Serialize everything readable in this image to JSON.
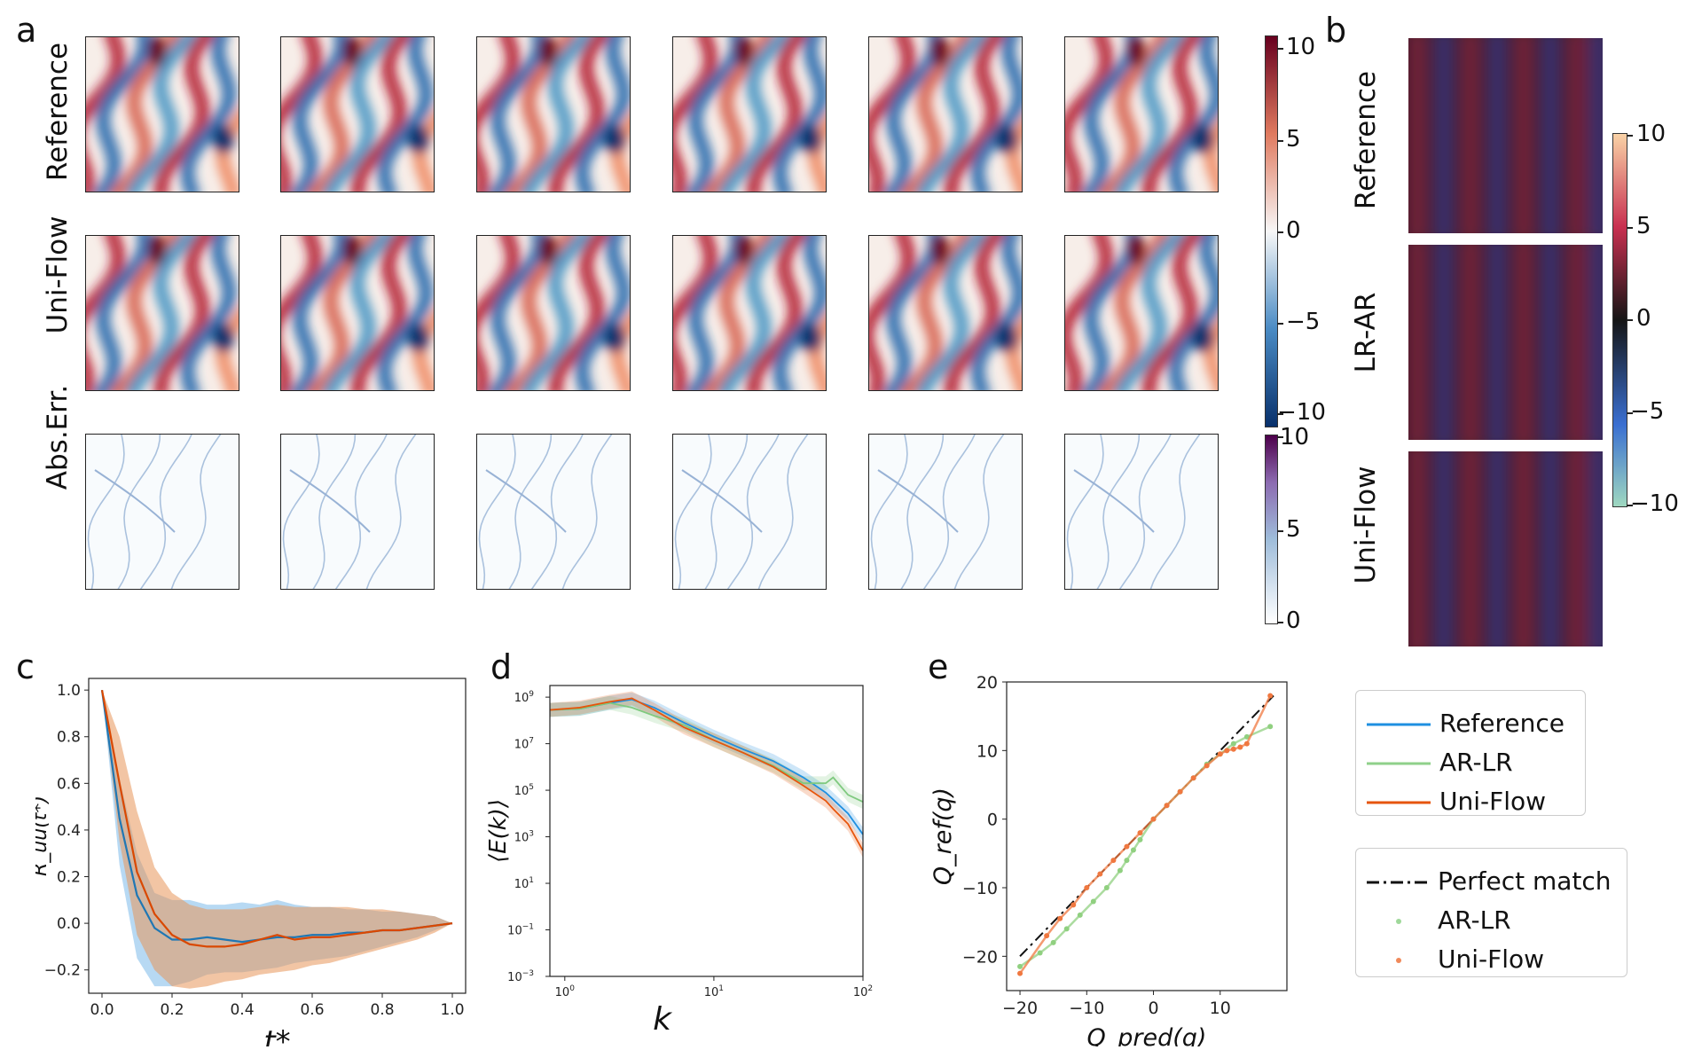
{
  "panel_a": {
    "letter": "a",
    "rows": [
      "Reference",
      "Uni-Flow",
      "Abs.Err."
    ],
    "colorbar_vorticity": {
      "ticks": [
        "10",
        "5",
        "0",
        "−10",
        "−5"
      ],
      "min": -10,
      "max": 10,
      "colors": [
        "#08306b",
        "#2166ac",
        "#f7f7f7",
        "#b2182b",
        "#67001f"
      ]
    },
    "colorbar_error": {
      "ticks": [
        "10",
        "5",
        "0"
      ],
      "min": 0,
      "max": 10,
      "colors": [
        "#ffffff",
        "#9ebcda",
        "#8c6bb1",
        "#4d004b"
      ]
    }
  },
  "panel_b": {
    "letter": "b",
    "rows": [
      "Reference",
      "LR-AR",
      "Uni-Flow"
    ],
    "colorbar": {
      "ticks": [
        "10",
        "5",
        "0",
        "−5",
        "−10"
      ],
      "min": -10,
      "max": 10,
      "colors": [
        "#6ec1a9",
        "#3f6fd0",
        "#1a1a1a",
        "#c0304a",
        "#f6c89a"
      ]
    }
  },
  "panel_c": {
    "letter": "c",
    "chart_data": {
      "type": "line",
      "xlabel": "t*",
      "ylabel": "R_uu(t*)",
      "xlim": [
        0,
        1
      ],
      "ylim": [
        -0.3,
        1.05
      ],
      "xticks": [
        "0.0",
        "0.2",
        "0.4",
        "0.6",
        "0.8",
        "1.0"
      ],
      "yticks": [
        "1.0",
        "0.8",
        "0.6",
        "0.4",
        "0.2",
        "0.0",
        "−0.2"
      ],
      "x": [
        0.0,
        0.05,
        0.1,
        0.15,
        0.2,
        0.25,
        0.3,
        0.35,
        0.4,
        0.45,
        0.5,
        0.55,
        0.6,
        0.65,
        0.7,
        0.75,
        0.8,
        0.85,
        0.9,
        0.95,
        1.0
      ],
      "series": [
        {
          "name": "Reference",
          "color": "#1f77b4",
          "band": "#6fb3e8",
          "values": [
            1.0,
            0.45,
            0.12,
            -0.02,
            -0.07,
            -0.07,
            -0.06,
            -0.07,
            -0.08,
            -0.07,
            -0.06,
            -0.06,
            -0.05,
            -0.05,
            -0.04,
            -0.04,
            -0.03,
            -0.03,
            -0.02,
            -0.01,
            0.0
          ],
          "upper": [
            1.0,
            0.62,
            0.3,
            0.13,
            0.1,
            0.1,
            0.08,
            0.08,
            0.09,
            0.08,
            0.1,
            0.08,
            0.07,
            0.07,
            0.06,
            0.06,
            0.05,
            0.05,
            0.04,
            0.03,
            0.0
          ],
          "lower": [
            1.0,
            0.25,
            -0.15,
            -0.27,
            -0.27,
            -0.25,
            -0.22,
            -0.21,
            -0.21,
            -0.2,
            -0.19,
            -0.17,
            -0.16,
            -0.15,
            -0.14,
            -0.12,
            -0.1,
            -0.08,
            -0.06,
            -0.03,
            0.0
          ]
        },
        {
          "name": "Uni-Flow",
          "color": "#d94801",
          "band": "#e8955a",
          "values": [
            1.0,
            0.6,
            0.22,
            0.04,
            -0.05,
            -0.09,
            -0.1,
            -0.1,
            -0.09,
            -0.07,
            -0.05,
            -0.07,
            -0.06,
            -0.06,
            -0.05,
            -0.04,
            -0.03,
            -0.03,
            -0.02,
            -0.01,
            0.0
          ],
          "upper": [
            1.0,
            0.8,
            0.48,
            0.24,
            0.13,
            0.08,
            0.06,
            0.06,
            0.06,
            0.07,
            0.08,
            0.07,
            0.07,
            0.07,
            0.07,
            0.06,
            0.06,
            0.05,
            0.04,
            0.03,
            0.0
          ],
          "lower": [
            1.0,
            0.35,
            -0.05,
            -0.2,
            -0.27,
            -0.28,
            -0.27,
            -0.25,
            -0.24,
            -0.22,
            -0.21,
            -0.2,
            -0.18,
            -0.17,
            -0.15,
            -0.13,
            -0.11,
            -0.09,
            -0.07,
            -0.04,
            0.0
          ]
        }
      ]
    }
  },
  "panel_d": {
    "letter": "d",
    "chart_data": {
      "type": "line",
      "xlabel": "k",
      "ylabel": "⟨E(k)⟩",
      "xscale": "log",
      "yscale": "log",
      "xlim_log10": [
        -0.1,
        2.0
      ],
      "ylim_log10": [
        -3,
        9.5
      ],
      "xticks": [
        {
          "base": "10",
          "exp": "0",
          "log": 0
        },
        {
          "base": "10",
          "exp": "1",
          "log": 1
        },
        {
          "base": "10",
          "exp": "2",
          "log": 2
        }
      ],
      "yticks": [
        {
          "base": "10",
          "exp": "9",
          "log": 9
        },
        {
          "base": "10",
          "exp": "7",
          "log": 7
        },
        {
          "base": "10",
          "exp": "5",
          "log": 5
        },
        {
          "base": "10",
          "exp": "3",
          "log": 3
        },
        {
          "base": "10",
          "exp": "1",
          "log": 1
        },
        {
          "base": "10",
          "exp": "−1",
          "log": -1
        },
        {
          "base": "10",
          "exp": "−3",
          "log": -3
        }
      ],
      "log_k": [
        -0.1,
        0.1,
        0.3,
        0.45,
        0.6,
        0.8,
        1.0,
        1.2,
        1.4,
        1.6,
        1.75,
        1.8,
        1.9,
        2.0
      ],
      "series": [
        {
          "name": "Reference",
          "color": "#1f8fe0",
          "values_log10": [
            8.45,
            8.5,
            8.75,
            8.9,
            8.55,
            7.9,
            7.3,
            6.75,
            6.25,
            5.55,
            4.9,
            4.6,
            4.0,
            3.1
          ]
        },
        {
          "name": "AR-LR",
          "color": "#7fc97f",
          "values_log10": [
            8.45,
            8.5,
            8.75,
            8.55,
            8.2,
            7.8,
            7.15,
            6.6,
            6.05,
            5.3,
            5.3,
            5.55,
            4.8,
            4.5
          ]
        },
        {
          "name": "Uni-Flow",
          "color": "#e6550d",
          "values_log10": [
            8.45,
            8.55,
            8.8,
            8.95,
            8.45,
            7.7,
            7.15,
            6.6,
            6.0,
            5.2,
            4.55,
            4.2,
            3.55,
            2.4
          ]
        }
      ]
    }
  },
  "panel_e": {
    "letter": "e",
    "chart_data": {
      "type": "scatter",
      "xlabel": "Q_pred(q)",
      "ylabel": "Q_ref(q)",
      "xlim": [
        -22,
        20
      ],
      "ylim": [
        -25,
        20
      ],
      "xticks": [
        "−20",
        "−10",
        "0",
        "10"
      ],
      "yticks": [
        "20",
        "10",
        "0",
        "−10",
        "−20"
      ],
      "reference_line": {
        "name": "Perfect match",
        "from": [
          -20,
          -20
        ],
        "to": [
          18,
          18
        ]
      },
      "series": [
        {
          "name": "AR-LR",
          "color": "#90d080",
          "x": [
            -20,
            -17,
            -15,
            -13,
            -11,
            -9,
            -7,
            -5,
            -4,
            -3,
            -2,
            0,
            2,
            4,
            6,
            8,
            10,
            12,
            14,
            17.5
          ],
          "y": [
            -21.5,
            -19.5,
            -18,
            -16,
            -14,
            -12,
            -10,
            -7.5,
            -6,
            -4.5,
            -3,
            0,
            2,
            4,
            6,
            8,
            9.5,
            11,
            12,
            13.5
          ]
        },
        {
          "name": "Uni-Flow",
          "color": "#f07840",
          "x": [
            -20,
            -16,
            -14,
            -12,
            -10,
            -8,
            -6,
            -4,
            -2,
            0,
            2,
            4,
            6,
            8,
            10,
            11,
            12,
            13,
            14,
            17.5
          ],
          "y": [
            -22.5,
            -17,
            -14.5,
            -12.5,
            -10,
            -8,
            -6,
            -4,
            -2,
            0,
            2,
            4,
            6,
            7.8,
            9.5,
            10,
            10.2,
            10.5,
            11,
            18
          ]
        }
      ]
    }
  },
  "legend1": {
    "items": [
      {
        "label": "Reference",
        "color": "#1f8fe0"
      },
      {
        "label": "AR-LR",
        "color": "#8fd08a"
      },
      {
        "label": "Uni-Flow",
        "color": "#e6550d"
      }
    ]
  },
  "legend2": {
    "items": [
      {
        "label": "Perfect match",
        "color": "#111111",
        "style": "dashdot"
      },
      {
        "label": "AR-LR",
        "color": "#9fd89a",
        "style": "dot"
      },
      {
        "label": "Uni-Flow",
        "color": "#f0895a",
        "style": "dot"
      }
    ]
  }
}
